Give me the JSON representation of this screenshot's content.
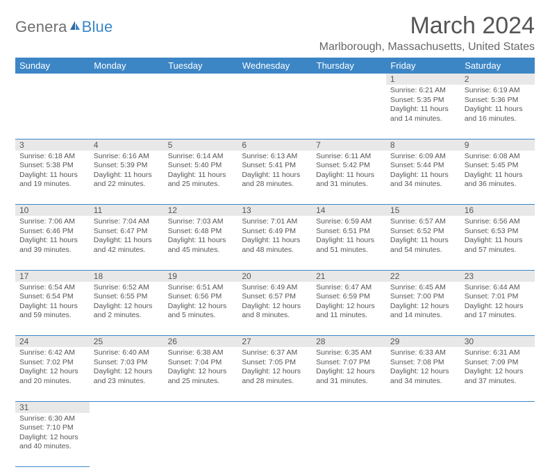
{
  "logo": {
    "textPrefix": "Genera",
    "textSuffix": "lue",
    "capitalLetter": "B"
  },
  "title": "March 2024",
  "location": "Marlborough, Massachusetts, United States",
  "weekdays": [
    "Sunday",
    "Monday",
    "Tuesday",
    "Wednesday",
    "Thursday",
    "Friday",
    "Saturday"
  ],
  "colors": {
    "headerBg": "#3c86c6",
    "headerText": "#ffffff",
    "dayNumBg": "#e8e8e8",
    "rowDivider": "#3c86c6",
    "textColor": "#555555",
    "logoBlue": "#3c86c6"
  },
  "weeks": [
    [
      null,
      null,
      null,
      null,
      null,
      {
        "n": "1",
        "sunrise": "Sunrise: 6:21 AM",
        "sunset": "Sunset: 5:35 PM",
        "daylight": "Daylight: 11 hours and 14 minutes."
      },
      {
        "n": "2",
        "sunrise": "Sunrise: 6:19 AM",
        "sunset": "Sunset: 5:36 PM",
        "daylight": "Daylight: 11 hours and 16 minutes."
      }
    ],
    [
      {
        "n": "3",
        "sunrise": "Sunrise: 6:18 AM",
        "sunset": "Sunset: 5:38 PM",
        "daylight": "Daylight: 11 hours and 19 minutes."
      },
      {
        "n": "4",
        "sunrise": "Sunrise: 6:16 AM",
        "sunset": "Sunset: 5:39 PM",
        "daylight": "Daylight: 11 hours and 22 minutes."
      },
      {
        "n": "5",
        "sunrise": "Sunrise: 6:14 AM",
        "sunset": "Sunset: 5:40 PM",
        "daylight": "Daylight: 11 hours and 25 minutes."
      },
      {
        "n": "6",
        "sunrise": "Sunrise: 6:13 AM",
        "sunset": "Sunset: 5:41 PM",
        "daylight": "Daylight: 11 hours and 28 minutes."
      },
      {
        "n": "7",
        "sunrise": "Sunrise: 6:11 AM",
        "sunset": "Sunset: 5:42 PM",
        "daylight": "Daylight: 11 hours and 31 minutes."
      },
      {
        "n": "8",
        "sunrise": "Sunrise: 6:09 AM",
        "sunset": "Sunset: 5:44 PM",
        "daylight": "Daylight: 11 hours and 34 minutes."
      },
      {
        "n": "9",
        "sunrise": "Sunrise: 6:08 AM",
        "sunset": "Sunset: 5:45 PM",
        "daylight": "Daylight: 11 hours and 36 minutes."
      }
    ],
    [
      {
        "n": "10",
        "sunrise": "Sunrise: 7:06 AM",
        "sunset": "Sunset: 6:46 PM",
        "daylight": "Daylight: 11 hours and 39 minutes."
      },
      {
        "n": "11",
        "sunrise": "Sunrise: 7:04 AM",
        "sunset": "Sunset: 6:47 PM",
        "daylight": "Daylight: 11 hours and 42 minutes."
      },
      {
        "n": "12",
        "sunrise": "Sunrise: 7:03 AM",
        "sunset": "Sunset: 6:48 PM",
        "daylight": "Daylight: 11 hours and 45 minutes."
      },
      {
        "n": "13",
        "sunrise": "Sunrise: 7:01 AM",
        "sunset": "Sunset: 6:49 PM",
        "daylight": "Daylight: 11 hours and 48 minutes."
      },
      {
        "n": "14",
        "sunrise": "Sunrise: 6:59 AM",
        "sunset": "Sunset: 6:51 PM",
        "daylight": "Daylight: 11 hours and 51 minutes."
      },
      {
        "n": "15",
        "sunrise": "Sunrise: 6:57 AM",
        "sunset": "Sunset: 6:52 PM",
        "daylight": "Daylight: 11 hours and 54 minutes."
      },
      {
        "n": "16",
        "sunrise": "Sunrise: 6:56 AM",
        "sunset": "Sunset: 6:53 PM",
        "daylight": "Daylight: 11 hours and 57 minutes."
      }
    ],
    [
      {
        "n": "17",
        "sunrise": "Sunrise: 6:54 AM",
        "sunset": "Sunset: 6:54 PM",
        "daylight": "Daylight: 11 hours and 59 minutes."
      },
      {
        "n": "18",
        "sunrise": "Sunrise: 6:52 AM",
        "sunset": "Sunset: 6:55 PM",
        "daylight": "Daylight: 12 hours and 2 minutes."
      },
      {
        "n": "19",
        "sunrise": "Sunrise: 6:51 AM",
        "sunset": "Sunset: 6:56 PM",
        "daylight": "Daylight: 12 hours and 5 minutes."
      },
      {
        "n": "20",
        "sunrise": "Sunrise: 6:49 AM",
        "sunset": "Sunset: 6:57 PM",
        "daylight": "Daylight: 12 hours and 8 minutes."
      },
      {
        "n": "21",
        "sunrise": "Sunrise: 6:47 AM",
        "sunset": "Sunset: 6:59 PM",
        "daylight": "Daylight: 12 hours and 11 minutes."
      },
      {
        "n": "22",
        "sunrise": "Sunrise: 6:45 AM",
        "sunset": "Sunset: 7:00 PM",
        "daylight": "Daylight: 12 hours and 14 minutes."
      },
      {
        "n": "23",
        "sunrise": "Sunrise: 6:44 AM",
        "sunset": "Sunset: 7:01 PM",
        "daylight": "Daylight: 12 hours and 17 minutes."
      }
    ],
    [
      {
        "n": "24",
        "sunrise": "Sunrise: 6:42 AM",
        "sunset": "Sunset: 7:02 PM",
        "daylight": "Daylight: 12 hours and 20 minutes."
      },
      {
        "n": "25",
        "sunrise": "Sunrise: 6:40 AM",
        "sunset": "Sunset: 7:03 PM",
        "daylight": "Daylight: 12 hours and 23 minutes."
      },
      {
        "n": "26",
        "sunrise": "Sunrise: 6:38 AM",
        "sunset": "Sunset: 7:04 PM",
        "daylight": "Daylight: 12 hours and 25 minutes."
      },
      {
        "n": "27",
        "sunrise": "Sunrise: 6:37 AM",
        "sunset": "Sunset: 7:05 PM",
        "daylight": "Daylight: 12 hours and 28 minutes."
      },
      {
        "n": "28",
        "sunrise": "Sunrise: 6:35 AM",
        "sunset": "Sunset: 7:07 PM",
        "daylight": "Daylight: 12 hours and 31 minutes."
      },
      {
        "n": "29",
        "sunrise": "Sunrise: 6:33 AM",
        "sunset": "Sunset: 7:08 PM",
        "daylight": "Daylight: 12 hours and 34 minutes."
      },
      {
        "n": "30",
        "sunrise": "Sunrise: 6:31 AM",
        "sunset": "Sunset: 7:09 PM",
        "daylight": "Daylight: 12 hours and 37 minutes."
      }
    ],
    [
      {
        "n": "31",
        "sunrise": "Sunrise: 6:30 AM",
        "sunset": "Sunset: 7:10 PM",
        "daylight": "Daylight: 12 hours and 40 minutes."
      },
      null,
      null,
      null,
      null,
      null,
      null
    ]
  ]
}
